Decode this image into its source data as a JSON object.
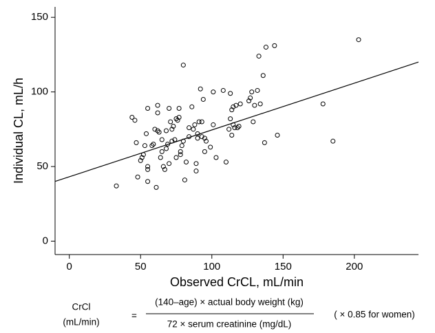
{
  "chart_data": {
    "type": "scatter",
    "xlabel": "Observed CrCL, mL/min",
    "ylabel": "Individual CL, mL/h",
    "xlim": [
      -10,
      245
    ],
    "ylim": [
      -9,
      157
    ],
    "xticks": [
      0,
      50,
      100,
      150,
      200
    ],
    "yticks": [
      0,
      50,
      100,
      150
    ],
    "color": "#000000",
    "x": [
      33,
      44,
      46,
      47,
      48,
      50,
      51,
      52,
      53,
      54,
      55,
      55,
      55,
      55,
      58,
      59,
      60,
      61,
      62,
      62,
      62,
      63,
      64,
      65,
      65,
      66,
      67,
      68,
      68,
      69,
      70,
      70,
      71,
      72,
      72,
      73,
      74,
      75,
      75,
      76,
      77,
      77,
      78,
      78,
      79,
      80,
      80,
      81,
      82,
      84,
      84,
      86,
      87,
      88,
      89,
      89,
      90,
      90,
      91,
      92,
      93,
      93,
      94,
      95,
      95,
      96,
      99,
      101,
      101,
      103,
      108,
      110,
      112,
      113,
      113,
      114,
      114,
      115,
      115,
      116,
      117,
      118,
      119,
      120,
      126,
      127,
      128,
      129,
      130,
      132,
      133,
      134,
      136,
      137,
      138,
      144,
      146,
      178,
      185,
      203
    ],
    "values": [
      37,
      83,
      81,
      66,
      43,
      54,
      56,
      58,
      64,
      72,
      50,
      48,
      40,
      89,
      64,
      65,
      75,
      36,
      91,
      86,
      74,
      73,
      56,
      60,
      68,
      50,
      48,
      74,
      62,
      65,
      52,
      89,
      80,
      67,
      75,
      77,
      68,
      82,
      56,
      81,
      89,
      83,
      58,
      60,
      64,
      118,
      67,
      41,
      53,
      70,
      76,
      90,
      75,
      78,
      52,
      47,
      69,
      72,
      80,
      102,
      70,
      80,
      95,
      60,
      69,
      67,
      63,
      100,
      78,
      56,
      101,
      53,
      75,
      82,
      99,
      88,
      71,
      78,
      90,
      76,
      91,
      76,
      77,
      92,
      94,
      96,
      100,
      80,
      91,
      101,
      124,
      92,
      111,
      66,
      130,
      131,
      71,
      92,
      67,
      135
    ],
    "fit": {
      "x": [
        -10,
        245
      ],
      "y": [
        40,
        120
      ]
    },
    "formula": {
      "lhs": "CrCl",
      "lhs_unit": "(mL/min)",
      "equals": "=",
      "numerator": "(140–age) × actual body weight (kg)",
      "denominator": "72 × serum creatinine (mg/dL)",
      "note": "( × 0.85 for women)"
    }
  }
}
